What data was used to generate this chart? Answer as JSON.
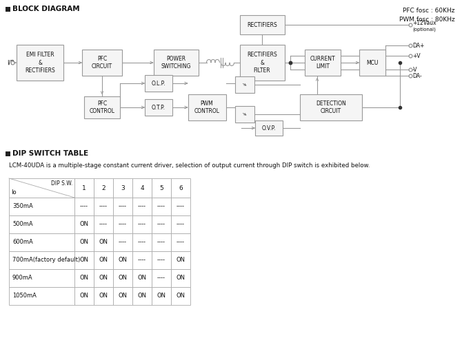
{
  "title_block": "BLOCK DIAGRAM",
  "title_dip": "DIP SWITCH TABLE",
  "pfc_text": "PFC fosc : 60KHz\nPWM fosc : 80KHz",
  "dip_desc": "LCM-40UDA is a multiple-stage constant current driver, selection of output current through DIP switch is exhibited below.",
  "bg_color": "#ffffff",
  "box_edge": "#999999",
  "box_fill": "#f5f5f5",
  "text_color": "#111111",
  "line_color": "#999999",
  "table_data": {
    "col_headers": [
      "1",
      "2",
      "3",
      "4",
      "5",
      "6"
    ],
    "row_labels": [
      "350mA",
      "500mA",
      "600mA",
      "700mA(factory default)",
      "900mA",
      "1050mA"
    ],
    "rows": [
      [
        "----",
        "----",
        "----",
        "----",
        "----",
        "----"
      ],
      [
        "ON",
        "----",
        "----",
        "----",
        "----",
        "----"
      ],
      [
        "ON",
        "ON",
        "----",
        "----",
        "----",
        "----"
      ],
      [
        "ON",
        "ON",
        "ON",
        "----",
        "----",
        "ON"
      ],
      [
        "ON",
        "ON",
        "ON",
        "ON",
        "----",
        "ON"
      ],
      [
        "ON",
        "ON",
        "ON",
        "ON",
        "ON",
        "ON"
      ]
    ]
  }
}
